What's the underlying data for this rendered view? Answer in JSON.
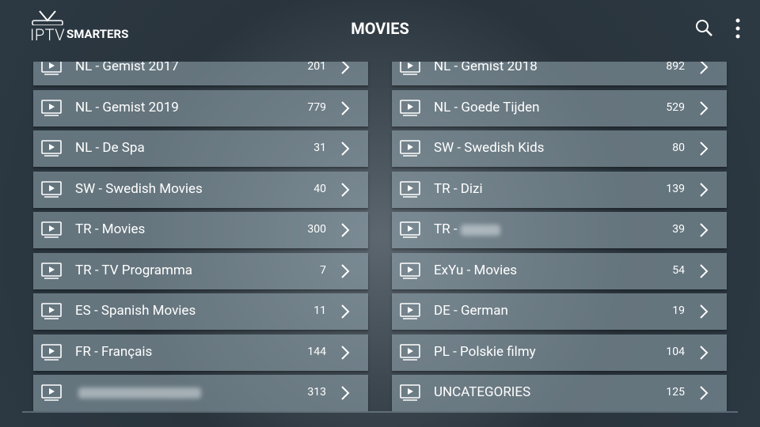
{
  "header": {
    "logo_iptv": "IPTV",
    "logo_smarters": "SMARTERS",
    "title": "MOVIES"
  },
  "left": [
    {
      "name": "NL - Gemist 2017",
      "count": 201
    },
    {
      "name": "NL - Gemist 2019",
      "count": 779
    },
    {
      "name": "NL - De Spa",
      "count": 31
    },
    {
      "name": "SW - Swedish Movies",
      "count": 40
    },
    {
      "name": "TR - Movies",
      "count": 300
    },
    {
      "name": "TR - TV Programma",
      "count": 7
    },
    {
      "name": "ES - Spanish Movies",
      "count": 11
    },
    {
      "name": "FR - Français",
      "count": 144
    },
    {
      "count": 313
    }
  ],
  "right": [
    {
      "name": "NL - Gemist 2018",
      "count": 892
    },
    {
      "name": "NL - Goede Tijden",
      "count": 529
    },
    {
      "name": "SW - Swedish Kids",
      "count": 80
    },
    {
      "name": "TR - Dizi",
      "count": 139
    },
    {
      "name": "TR -",
      "count": 39
    },
    {
      "name": "ExYu - Movies",
      "count": 54
    },
    {
      "name": "DE - German",
      "count": 19
    },
    {
      "name": "PL - Polskie filmy",
      "count": 104
    },
    {
      "name": "UNCATEGORIES",
      "count": 125
    }
  ]
}
